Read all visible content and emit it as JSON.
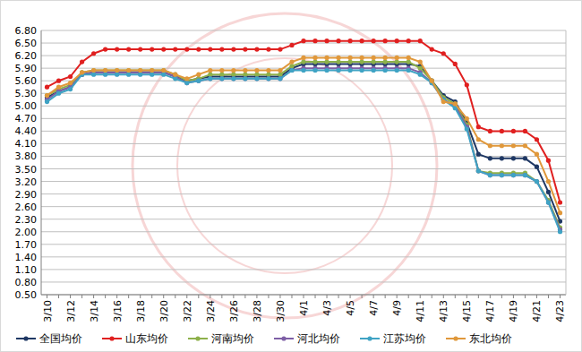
{
  "chart_data": {
    "type": "line",
    "categories": [
      "3/10",
      null,
      "3/12",
      null,
      "3/14",
      null,
      "3/16",
      null,
      "3/18",
      null,
      "3/20",
      null,
      "3/22",
      null,
      "3/24",
      null,
      "3/26",
      null,
      "3/28",
      null,
      "3/30",
      null,
      "4/1",
      null,
      "4/3",
      null,
      "4/5",
      null,
      "4/7",
      null,
      "4/9",
      null,
      "4/11",
      null,
      "4/13",
      null,
      "4/15",
      null,
      "4/17",
      null,
      "4/19",
      null,
      "4/21",
      null,
      "4/23"
    ],
    "series": [
      {
        "name": "全国均价",
        "color": "#1f3864",
        "marker": "circle",
        "values": [
          5.2,
          5.35,
          5.45,
          5.75,
          5.8,
          5.8,
          5.8,
          5.8,
          5.8,
          5.8,
          5.8,
          5.7,
          5.6,
          5.65,
          5.7,
          5.7,
          5.7,
          5.7,
          5.7,
          5.7,
          5.7,
          5.9,
          6.0,
          6.0,
          6.0,
          6.0,
          6.0,
          6.0,
          6.0,
          6.0,
          6.0,
          6.0,
          5.95,
          5.6,
          5.25,
          5.1,
          4.6,
          3.85,
          3.75,
          3.75,
          3.75,
          3.75,
          3.55,
          2.95,
          2.25
        ]
      },
      {
        "name": "山东均价",
        "color": "#e02020",
        "marker": "circle",
        "values": [
          5.45,
          5.6,
          5.7,
          6.05,
          6.25,
          6.35,
          6.35,
          6.35,
          6.35,
          6.35,
          6.35,
          6.35,
          6.35,
          6.35,
          6.35,
          6.35,
          6.35,
          6.35,
          6.35,
          6.35,
          6.35,
          6.45,
          6.55,
          6.55,
          6.55,
          6.55,
          6.55,
          6.55,
          6.55,
          6.55,
          6.55,
          6.55,
          6.55,
          6.35,
          6.25,
          6.0,
          5.5,
          4.5,
          4.4,
          4.4,
          4.4,
          4.4,
          4.2,
          3.7,
          2.7
        ]
      },
      {
        "name": "河南均价",
        "color": "#8db04a",
        "marker": "circle",
        "values": [
          5.25,
          5.4,
          5.5,
          5.8,
          5.85,
          5.85,
          5.85,
          5.85,
          5.85,
          5.85,
          5.85,
          5.75,
          5.6,
          5.65,
          5.75,
          5.75,
          5.75,
          5.75,
          5.75,
          5.75,
          5.75,
          5.95,
          6.05,
          6.05,
          6.05,
          6.05,
          6.05,
          6.05,
          6.05,
          6.05,
          6.05,
          6.05,
          5.9,
          5.6,
          5.2,
          5.05,
          4.55,
          3.45,
          3.4,
          3.4,
          3.4,
          3.4,
          3.2,
          2.75,
          2.1
        ]
      },
      {
        "name": "河北均价",
        "color": "#7e5fa6",
        "marker": "circle",
        "values": [
          5.15,
          5.35,
          5.45,
          5.75,
          5.8,
          5.8,
          5.8,
          5.8,
          5.8,
          5.8,
          5.8,
          5.7,
          5.55,
          5.6,
          5.65,
          5.65,
          5.65,
          5.65,
          5.65,
          5.65,
          5.65,
          5.85,
          5.9,
          5.9,
          5.9,
          5.9,
          5.9,
          5.9,
          5.9,
          5.9,
          5.9,
          5.9,
          5.8,
          5.55,
          5.15,
          5.0,
          4.5,
          3.45,
          3.35,
          3.35,
          3.35,
          3.35,
          3.2,
          2.7,
          2.05
        ]
      },
      {
        "name": "江苏均价",
        "color": "#3fa3c4",
        "marker": "circle",
        "values": [
          5.1,
          5.3,
          5.4,
          5.75,
          5.75,
          5.75,
          5.75,
          5.75,
          5.75,
          5.75,
          5.75,
          5.65,
          5.55,
          5.6,
          5.65,
          5.65,
          5.65,
          5.65,
          5.65,
          5.65,
          5.65,
          5.85,
          5.85,
          5.85,
          5.85,
          5.85,
          5.85,
          5.85,
          5.85,
          5.85,
          5.85,
          5.85,
          5.75,
          5.55,
          5.15,
          4.95,
          4.45,
          3.45,
          3.35,
          3.35,
          3.35,
          3.35,
          3.2,
          2.7,
          2.0
        ]
      },
      {
        "name": "东北均价",
        "color": "#e0983b",
        "marker": "circle",
        "values": [
          5.25,
          5.45,
          5.55,
          5.8,
          5.85,
          5.85,
          5.85,
          5.85,
          5.85,
          5.85,
          5.85,
          5.75,
          5.65,
          5.75,
          5.85,
          5.85,
          5.85,
          5.85,
          5.85,
          5.85,
          5.85,
          6.05,
          6.15,
          6.15,
          6.15,
          6.15,
          6.15,
          6.15,
          6.15,
          6.15,
          6.15,
          6.15,
          6.05,
          5.6,
          5.1,
          5.05,
          4.7,
          4.2,
          4.05,
          4.05,
          4.05,
          4.05,
          3.85,
          3.2,
          2.45
        ]
      }
    ],
    "ylim": [
      0.5,
      6.8
    ],
    "yticks": [
      {
        "value": 0.5,
        "label": "0.50"
      },
      {
        "value": 0.8,
        "label": "0.80"
      },
      {
        "value": 1.1,
        "label": "1.10"
      },
      {
        "value": 1.4,
        "label": "1.40"
      },
      {
        "value": 1.7,
        "label": "1.70"
      },
      {
        "value": 2.0,
        "label": "2.00"
      },
      {
        "value": 2.3,
        "label": "2.30"
      },
      {
        "value": 2.6,
        "label": "2.60"
      },
      {
        "value": 2.9,
        "label": "2.90"
      },
      {
        "value": 3.2,
        "label": "3.20"
      },
      {
        "value": 3.5,
        "label": "3.50"
      },
      {
        "value": 3.8,
        "label": "3.80"
      },
      {
        "value": 4.1,
        "label": "4.10"
      },
      {
        "value": 4.4,
        "label": "4.40"
      },
      {
        "value": 4.7,
        "label": "4.70"
      },
      {
        "value": 5.0,
        "label": "5.00"
      },
      {
        "value": 5.3,
        "label": "5.30"
      },
      {
        "value": 5.6,
        "label": "5.60"
      },
      {
        "value": 5.9,
        "label": "5.90"
      },
      {
        "value": 6.2,
        "label": "6.20"
      },
      {
        "value": 6.5,
        "label": "6.50"
      },
      {
        "value": 6.8,
        "label": "6.80"
      }
    ],
    "grid": true,
    "legend": "bottom"
  }
}
